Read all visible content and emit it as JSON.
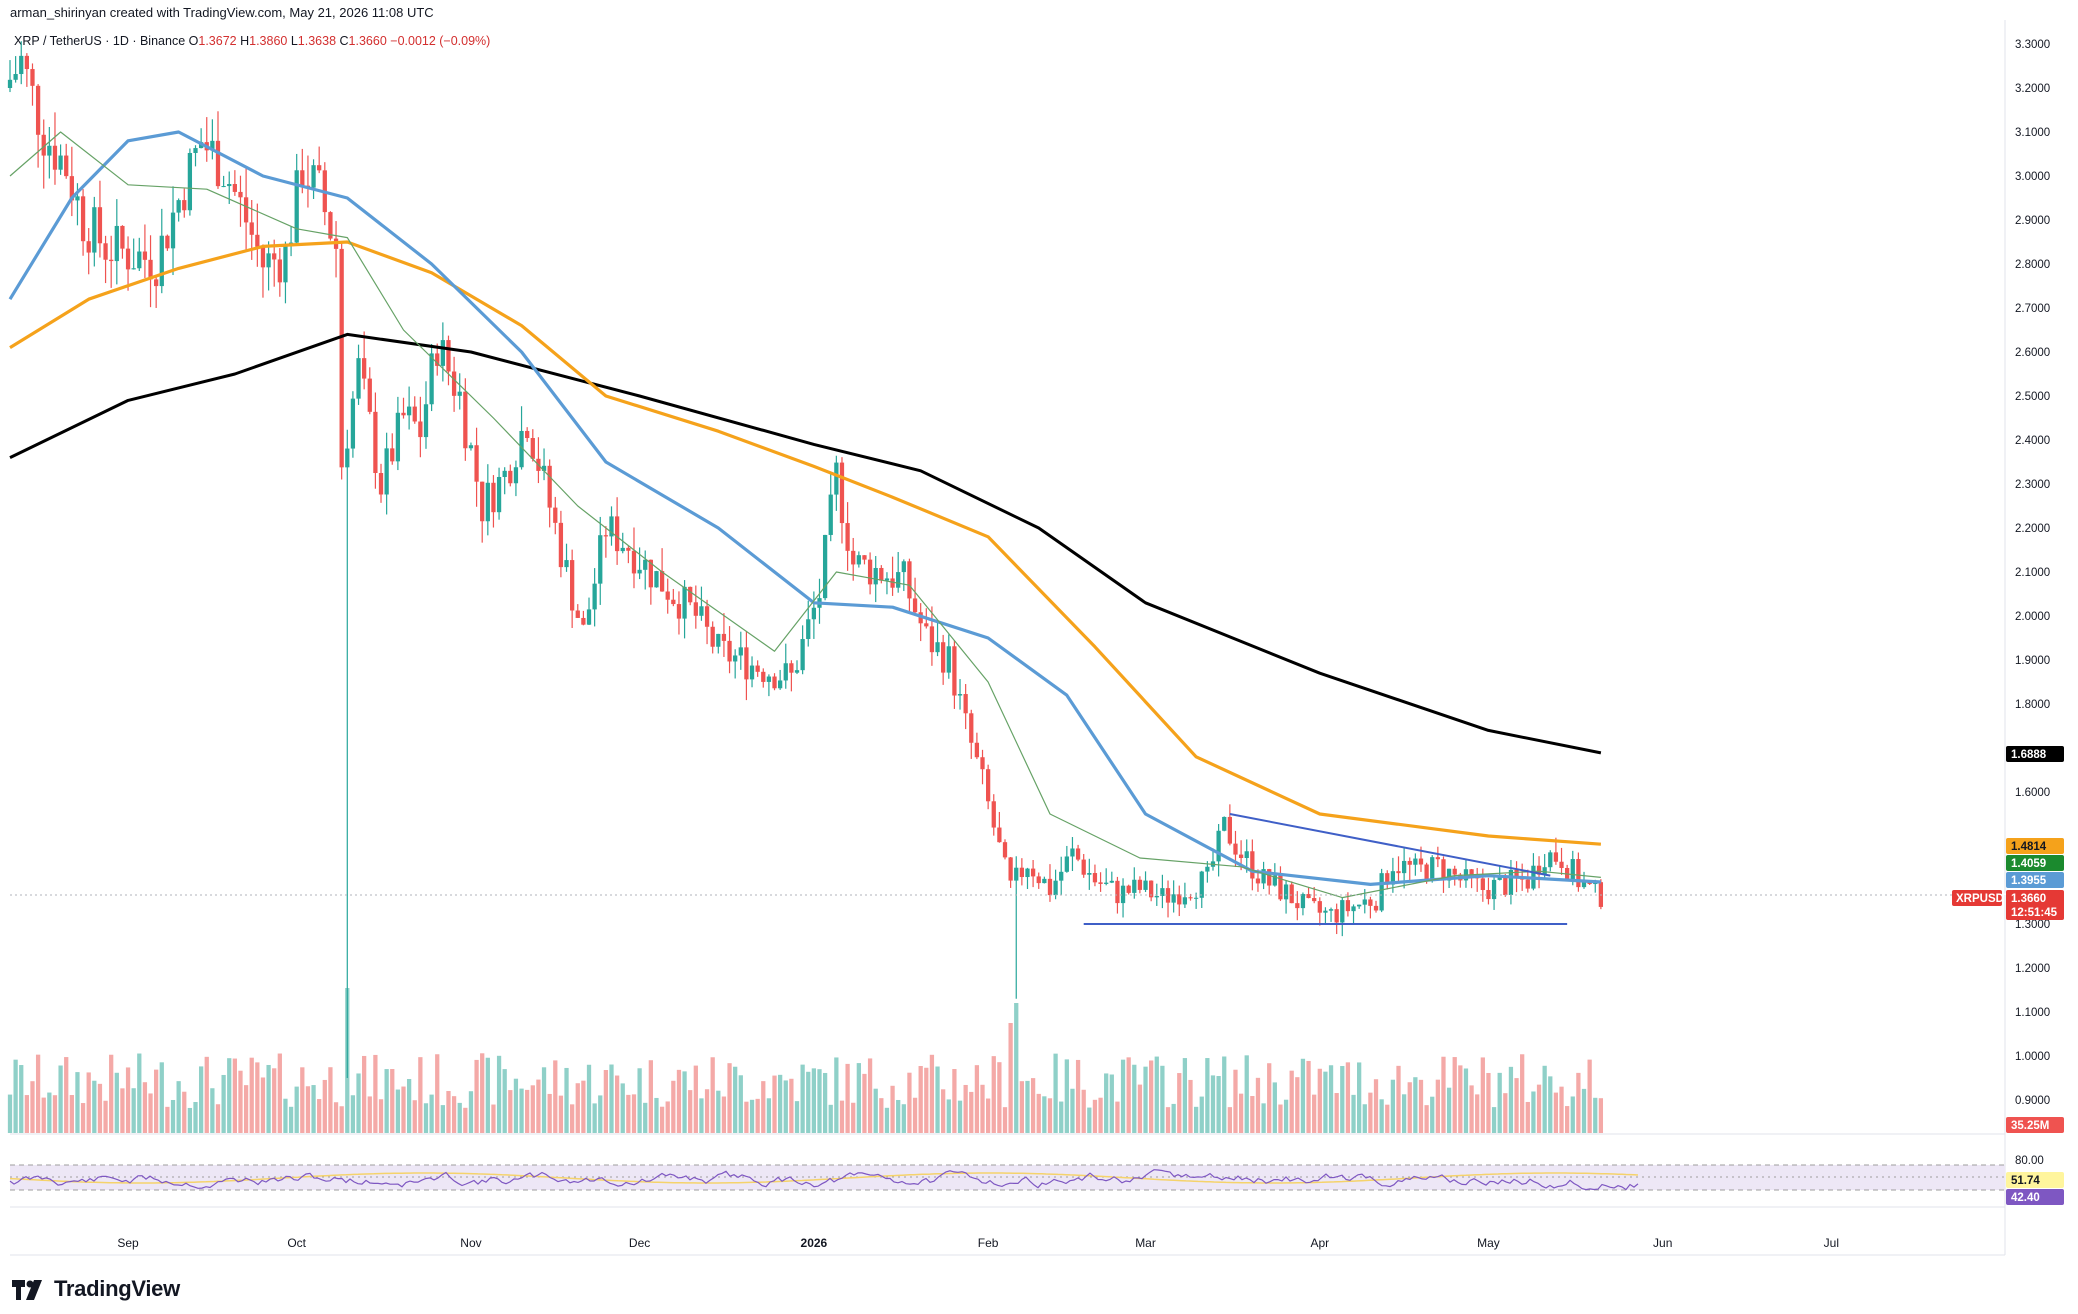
{
  "header": {
    "author_line": "arman_shirinyan created with TradingView.com, May 21, 2026 11:08 UTC"
  },
  "symbol": {
    "name": "XRP / TetherUS · 1D · Binance",
    "open_label": "O",
    "open": "1.3672",
    "high_label": "H",
    "high": "1.3860",
    "low_label": "L",
    "low": "1.3638",
    "close_label": "C",
    "close": "1.3660",
    "change": "−0.0012 (−0.09%)"
  },
  "logo": {
    "text": "TradingView",
    "icon": "tradingview-logo-icon"
  },
  "colors": {
    "up": "#26a69a",
    "down": "#ef5350",
    "ma_black": "#000000",
    "ma_orange": "#f5a21b",
    "ma_blue": "#5b9bd5",
    "ma_green": "#66a266",
    "trend": "#3f5fc7",
    "rsi": "#7e57c2",
    "rsi_ma": "#f5d36b",
    "rsi_band": "#ede7f6"
  },
  "chart_data": {
    "type": "candlestick",
    "price_axis": {
      "range": [
        0.85,
        3.34
      ],
      "ticks": [
        "3.3000",
        "3.2000",
        "3.1000",
        "3.0000",
        "2.9000",
        "2.8000",
        "2.7000",
        "2.6000",
        "2.5000",
        "2.4000",
        "2.3000",
        "2.2000",
        "2.1000",
        "2.0000",
        "1.9000",
        "1.8000",
        "1.6000",
        "1.3000",
        "1.2000",
        "1.1000",
        "1.0000",
        "0.9000"
      ]
    },
    "time_axis": {
      "labels": [
        {
          "text": "Sep",
          "x": "2025-09-01"
        },
        {
          "text": "Oct",
          "x": "2025-10-01"
        },
        {
          "text": "Nov",
          "x": "2025-11-01"
        },
        {
          "text": "Dec",
          "x": "2025-12-01"
        },
        {
          "text": "2026",
          "x": "2026-01-01"
        },
        {
          "text": "Feb",
          "x": "2026-02-01"
        },
        {
          "text": "Mar",
          "x": "2026-03-01"
        },
        {
          "text": "Apr",
          "x": "2026-04-01"
        },
        {
          "text": "May",
          "x": "2026-05-01"
        },
        {
          "text": "Jun",
          "x": "2026-06-01"
        },
        {
          "text": "Jul",
          "x": "2026-07-01"
        }
      ]
    },
    "price_path": [
      [
        "2025-08-11",
        3.2
      ],
      [
        "2025-08-14",
        3.26
      ],
      [
        "2025-08-18",
        3.1
      ],
      [
        "2025-08-22",
        3.02
      ],
      [
        "2025-08-25",
        2.9
      ],
      [
        "2025-08-29",
        2.84
      ],
      [
        "2025-09-03",
        2.82
      ],
      [
        "2025-09-07",
        2.81
      ],
      [
        "2025-09-12",
        2.98
      ],
      [
        "2025-09-15",
        3.08
      ],
      [
        "2025-09-19",
        3.02
      ],
      [
        "2025-09-23",
        2.9
      ],
      [
        "2025-09-26",
        2.8
      ],
      [
        "2025-09-30",
        2.82
      ],
      [
        "2025-10-03",
        3.02
      ],
      [
        "2025-10-06",
        2.96
      ],
      [
        "2025-10-09",
        2.84
      ],
      [
        "2025-10-10",
        2.35
      ],
      [
        "2025-10-13",
        2.56
      ],
      [
        "2025-10-17",
        2.3
      ],
      [
        "2025-10-21",
        2.45
      ],
      [
        "2025-10-24",
        2.42
      ],
      [
        "2025-10-27",
        2.62
      ],
      [
        "2025-10-31",
        2.5
      ],
      [
        "2025-11-04",
        2.25
      ],
      [
        "2025-11-08",
        2.32
      ],
      [
        "2025-11-12",
        2.45
      ],
      [
        "2025-11-16",
        2.25
      ],
      [
        "2025-11-20",
        2.05
      ],
      [
        "2025-11-22",
        1.96
      ],
      [
        "2025-11-26",
        2.2
      ],
      [
        "2025-11-30",
        2.16
      ],
      [
        "2025-12-04",
        2.1
      ],
      [
        "2025-12-08",
        2.05
      ],
      [
        "2025-12-12",
        2.0
      ],
      [
        "2025-12-16",
        1.92
      ],
      [
        "2025-12-20",
        1.9
      ],
      [
        "2025-12-24",
        1.88
      ],
      [
        "2025-12-29",
        1.86
      ],
      [
        "2026-01-03",
        2.05
      ],
      [
        "2026-01-06",
        2.32
      ],
      [
        "2026-01-09",
        2.12
      ],
      [
        "2026-01-14",
        2.1
      ],
      [
        "2026-01-18",
        2.08
      ],
      [
        "2026-01-22",
        1.95
      ],
      [
        "2026-01-26",
        1.9
      ],
      [
        "2026-01-29",
        1.75
      ],
      [
        "2026-02-01",
        1.62
      ],
      [
        "2026-02-05",
        1.42
      ],
      [
        "2026-02-06",
        1.38
      ],
      [
        "2026-02-09",
        1.44
      ],
      [
        "2026-02-13",
        1.38
      ],
      [
        "2026-02-17",
        1.46
      ],
      [
        "2026-02-21",
        1.4
      ],
      [
        "2026-02-25",
        1.37
      ],
      [
        "2026-03-01",
        1.38
      ],
      [
        "2026-03-05",
        1.36
      ],
      [
        "2026-03-09",
        1.38
      ],
      [
        "2026-03-13",
        1.4
      ],
      [
        "2026-03-16",
        1.52
      ],
      [
        "2026-03-19",
        1.46
      ],
      [
        "2026-03-23",
        1.4
      ],
      [
        "2026-03-27",
        1.37
      ],
      [
        "2026-03-31",
        1.33
      ],
      [
        "2026-04-04",
        1.32
      ],
      [
        "2026-04-08",
        1.34
      ],
      [
        "2026-04-12",
        1.36
      ],
      [
        "2026-04-15",
        1.44
      ],
      [
        "2026-04-19",
        1.42
      ],
      [
        "2026-04-23",
        1.43
      ],
      [
        "2026-04-27",
        1.4
      ],
      [
        "2026-05-01",
        1.38
      ],
      [
        "2026-05-05",
        1.39
      ],
      [
        "2026-05-09",
        1.4
      ],
      [
        "2026-05-12",
        1.46
      ],
      [
        "2026-05-15",
        1.45
      ],
      [
        "2026-05-18",
        1.4
      ],
      [
        "2026-05-21",
        1.366
      ]
    ],
    "moving_averages": [
      {
        "color": "#000000",
        "points": [
          [
            "2025-08-11",
            2.36
          ],
          [
            "2025-09-01",
            2.49
          ],
          [
            "2025-09-20",
            2.55
          ],
          [
            "2025-10-10",
            2.64
          ],
          [
            "2025-11-01",
            2.6
          ],
          [
            "2025-12-01",
            2.5
          ],
          [
            "2026-01-01",
            2.39
          ],
          [
            "2026-01-20",
            2.33
          ],
          [
            "2026-02-10",
            2.2
          ],
          [
            "2026-03-01",
            2.03
          ],
          [
            "2026-04-01",
            1.87
          ],
          [
            "2026-05-01",
            1.74
          ],
          [
            "2026-05-21",
            1.6888
          ]
        ]
      },
      {
        "color": "#f5a21b",
        "points": [
          [
            "2025-08-11",
            2.61
          ],
          [
            "2025-08-25",
            2.72
          ],
          [
            "2025-09-10",
            2.79
          ],
          [
            "2025-09-25",
            2.84
          ],
          [
            "2025-10-10",
            2.85
          ],
          [
            "2025-10-25",
            2.78
          ],
          [
            "2025-11-10",
            2.66
          ],
          [
            "2025-11-25",
            2.5
          ],
          [
            "2025-12-15",
            2.42
          ],
          [
            "2026-01-01",
            2.34
          ],
          [
            "2026-01-15",
            2.27
          ],
          [
            "2026-02-01",
            2.18
          ],
          [
            "2026-02-20",
            1.93
          ],
          [
            "2026-03-10",
            1.68
          ],
          [
            "2026-04-01",
            1.55
          ],
          [
            "2026-05-01",
            1.5
          ],
          [
            "2026-05-21",
            1.4814
          ]
        ]
      },
      {
        "color": "#5b9bd5",
        "points": [
          [
            "2025-08-11",
            2.72
          ],
          [
            "2025-08-22",
            2.95
          ],
          [
            "2025-09-01",
            3.08
          ],
          [
            "2025-09-10",
            3.1
          ],
          [
            "2025-09-25",
            3.0
          ],
          [
            "2025-10-10",
            2.95
          ],
          [
            "2025-10-25",
            2.8
          ],
          [
            "2025-11-10",
            2.6
          ],
          [
            "2025-11-25",
            2.35
          ],
          [
            "2025-12-15",
            2.2
          ],
          [
            "2026-01-01",
            2.03
          ],
          [
            "2026-01-15",
            2.02
          ],
          [
            "2026-02-01",
            1.95
          ],
          [
            "2026-02-15",
            1.82
          ],
          [
            "2026-03-01",
            1.55
          ],
          [
            "2026-03-20",
            1.42
          ],
          [
            "2026-04-10",
            1.39
          ],
          [
            "2026-05-01",
            1.41
          ],
          [
            "2026-05-21",
            1.3955
          ]
        ]
      },
      {
        "color": "#66a266",
        "points": [
          [
            "2025-08-11",
            3.0
          ],
          [
            "2025-08-20",
            3.1
          ],
          [
            "2025-09-01",
            2.98
          ],
          [
            "2025-09-15",
            2.97
          ],
          [
            "2025-10-01",
            2.88
          ],
          [
            "2025-10-10",
            2.86
          ],
          [
            "2025-10-20",
            2.65
          ],
          [
            "2025-11-05",
            2.45
          ],
          [
            "2025-11-20",
            2.25
          ],
          [
            "2025-12-05",
            2.1
          ],
          [
            "2025-12-25",
            1.92
          ],
          [
            "2026-01-05",
            2.1
          ],
          [
            "2026-01-18",
            2.07
          ],
          [
            "2026-02-01",
            1.85
          ],
          [
            "2026-02-12",
            1.55
          ],
          [
            "2026-02-28",
            1.45
          ],
          [
            "2026-03-18",
            1.43
          ],
          [
            "2026-04-05",
            1.36
          ],
          [
            "2026-04-25",
            1.41
          ],
          [
            "2026-05-10",
            1.42
          ],
          [
            "2026-05-21",
            1.4059
          ]
        ]
      }
    ],
    "trendlines": [
      {
        "from": [
          "2026-03-16",
          1.55
        ],
        "to": [
          "2026-05-12",
          1.41
        ]
      },
      {
        "from": [
          "2026-02-18",
          1.3
        ],
        "to": [
          "2026-05-15",
          1.3
        ]
      }
    ],
    "price_badges": [
      {
        "value": "1.6888",
        "bg": "#000000",
        "fg": "#ffffff",
        "price": 1.6888
      },
      {
        "value": "1.4814",
        "bg": "#f5a21b",
        "fg": "#131722",
        "price": 1.4814
      },
      {
        "value": "1.4059",
        "bg": "#1b8a2e",
        "fg": "#ffffff",
        "price": 1.4059
      },
      {
        "value": "1.3955",
        "bg": "#5b9bd5",
        "fg": "#ffffff",
        "price": 1.3955
      }
    ],
    "last_price": {
      "symbol": "XRPUSDT",
      "value": "1.3660",
      "countdown": "12:51:45",
      "price": 1.366,
      "bg": "#e53935"
    },
    "volume": {
      "last": "35.25M",
      "bg": "#ef5350"
    },
    "rsi": {
      "ticks": [
        "80.00"
      ],
      "range": [
        20,
        85
      ],
      "value": "51.74",
      "value_bg": "#fff59d",
      "ma_value": "42.40",
      "ma_bg": "#7e57c2"
    }
  }
}
